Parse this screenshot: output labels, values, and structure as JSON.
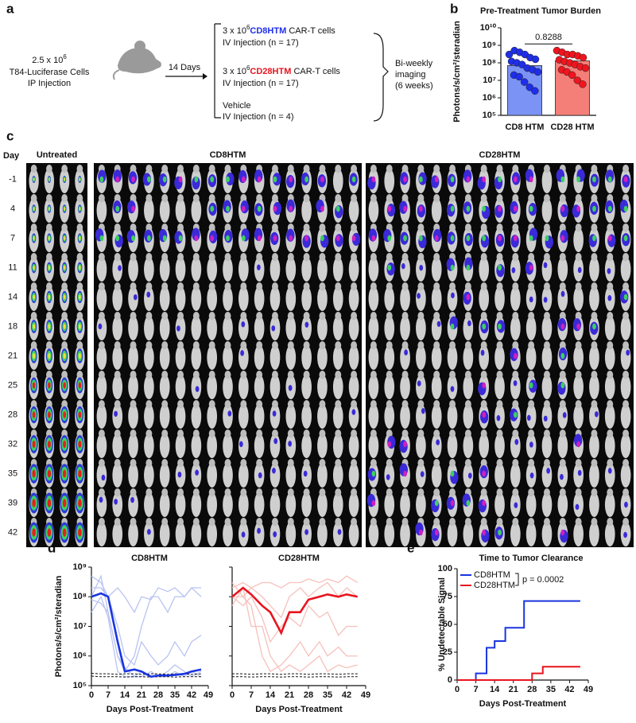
{
  "panel_labels": [
    "a",
    "b",
    "c",
    "d",
    "e"
  ],
  "schematic": {
    "cells_dose": "2.5 x 10",
    "cells_exp": "6",
    "cells_line": "T84-Luciferase Cells",
    "cells_route": "IP Injection",
    "delay": "14 Days",
    "arms": [
      {
        "dose": "3 x 10",
        "exp": "6",
        "name": "CD8HTM",
        "suffix": "CAR-T cells",
        "route": "IV Injection (n = 17)",
        "color": "#1f2ee8"
      },
      {
        "dose": "3 x 10",
        "exp": "6",
        "name": "CD28HTM",
        "suffix": "CAR-T cells",
        "route": "IV Injection (n = 17)",
        "color": "#e8141e"
      },
      {
        "name": "Vehicle",
        "route": "IV Injection (n = 4)"
      }
    ],
    "readout": [
      "Bi-weekly",
      "imaging",
      "(6 weeks)"
    ]
  },
  "imaging": {
    "groups": [
      {
        "name": "Untreated",
        "color": "#111"
      },
      {
        "name": "CD8HTM",
        "color": "#1f2ee8"
      },
      {
        "name": "CD28HTM",
        "color": "#e8141e"
      }
    ],
    "day_header": "Day",
    "days": [
      "-1",
      "4",
      "7",
      "11",
      "14",
      "18",
      "21",
      "25",
      "28",
      "32",
      "35",
      "39",
      "42"
    ]
  },
  "chart_data": [
    {
      "type": "bar",
      "title": "Pre-Treatment Tumor Burden",
      "y_label": "Photons/s/cm²/steradian",
      "categories": [
        "CD8 HTM",
        "CD28 HTM"
      ],
      "values": [
        70000000,
        130000000
      ],
      "colors": [
        "#7b93f5",
        "#f47f79"
      ],
      "point_colors": [
        "#1f2ee8",
        "#f0141e"
      ],
      "points": [
        [
          300000000,
          500000000,
          400000000,
          300000000,
          200000000,
          160000000,
          120000000,
          100000000,
          80000000,
          50000000,
          40000000,
          30000000,
          20000000,
          16000000,
          8000000,
          4000000,
          2500000
        ],
        [
          500000000,
          400000000,
          300000000,
          300000000,
          250000000,
          200000000,
          150000000,
          120000000,
          100000000,
          80000000,
          60000000,
          50000000,
          40000000,
          30000000,
          20000000,
          10000000,
          6000000
        ]
      ],
      "annotation": "0.8288",
      "log_y": true,
      "ylim": [
        100000,
        10000000000
      ],
      "yticks": [
        {
          "value": 100000,
          "label": "10⁵"
        },
        {
          "value": 1000000,
          "label": "10⁶"
        },
        {
          "value": 10000000,
          "label": "10⁷"
        },
        {
          "value": 100000000,
          "label": "10⁸"
        },
        {
          "value": 1000000000,
          "label": "10⁹"
        },
        {
          "value": 10000000000,
          "label": "10¹⁰"
        }
      ]
    },
    {
      "type": "line",
      "title": "CD8HTM",
      "x_label": "Days Post-Treatment",
      "y_label": "Photons/s/cm²/steradian",
      "log_y": true,
      "x": [
        0,
        4,
        7,
        11,
        14,
        18,
        21,
        25,
        28,
        32,
        35,
        39,
        42,
        46
      ],
      "xlim": [
        0,
        49
      ],
      "xticks": [
        0,
        7,
        14,
        21,
        28,
        35,
        42,
        49
      ],
      "ylim": [
        100000,
        1000000000
      ],
      "yticks": [
        {
          "value": 100000,
          "label": "10⁵"
        },
        {
          "value": 1000000,
          "label": "10⁶"
        },
        {
          "value": 10000000,
          "label": "10⁷"
        },
        {
          "value": 100000000,
          "label": "10⁸"
        },
        {
          "value": 1000000000,
          "label": "10⁹"
        }
      ],
      "series": [
        {
          "color": "#b9c3f2",
          "width": 1.3,
          "values": [
            200000000,
            200000000,
            100000000,
            200000000,
            100000000,
            30000000,
            100000000,
            80000000,
            200000000,
            150000000,
            200000000,
            100000000,
            200000000,
            200000000
          ]
        },
        {
          "color": "#b9c3f2",
          "width": 1.3,
          "values": [
            100000000,
            500000000,
            30000000,
            1000000,
            300000,
            1000000,
            10000000,
            100000000,
            100000000,
            30000000,
            100000000,
            100000000,
            200000000,
            100000000
          ]
        },
        {
          "color": "#b9c3f2",
          "width": 1.3,
          "values": [
            30000000,
            100000000,
            20000000,
            300000,
            200000,
            200000,
            300000,
            200000,
            200000,
            300000,
            500000,
            300000,
            200000,
            300000
          ]
        },
        {
          "color": "#b9c3f2",
          "width": 1.3,
          "values": [
            500000000,
            300000000,
            100000000,
            10000000,
            1000000,
            500000,
            3000000,
            1000000,
            500000,
            1000000,
            3000000,
            1000000,
            3000000,
            5000000
          ]
        },
        {
          "color": "#b9c3f2",
          "width": 1.3,
          "values": [
            80000000,
            60000000,
            30000000,
            1000000,
            400000,
            200000,
            200000,
            300000,
            200000,
            200000,
            300000,
            200000,
            300000,
            200000
          ]
        },
        {
          "color": "#111",
          "width": 1,
          "dash": true,
          "values": [
            260000,
            250000,
            250000,
            240000,
            250000,
            250000,
            240000,
            250000,
            250000,
            240000,
            250000,
            250000,
            240000,
            250000
          ]
        },
        {
          "color": "#111",
          "width": 1,
          "dash": true,
          "values": [
            210000,
            200000,
            200000,
            200000,
            195000,
            200000,
            200000,
            195000,
            200000,
            200000,
            195000,
            200000,
            200000,
            200000
          ]
        },
        {
          "color": "#1a35e0",
          "width": 2.6,
          "values": [
            100000000,
            130000000,
            100000000,
            3000000,
            300000,
            350000,
            300000,
            200000,
            220000,
            220000,
            230000,
            250000,
            300000,
            350000
          ]
        }
      ]
    },
    {
      "type": "line",
      "title": "CD28HTM",
      "x_label": "Days Post-Treatment",
      "log_y": true,
      "x": [
        0,
        4,
        7,
        11,
        14,
        18,
        21,
        25,
        28,
        32,
        35,
        39,
        42,
        46
      ],
      "xlim": [
        0,
        49
      ],
      "xticks": [
        0,
        7,
        14,
        21,
        28,
        35,
        42,
        49
      ],
      "ylim": [
        100000,
        1000000000
      ],
      "series": [
        {
          "color": "#f6c0bb",
          "width": 1.3,
          "values": [
            200000000,
            300000000,
            200000000,
            300000000,
            300000000,
            200000000,
            300000000,
            300000000,
            400000000,
            300000000,
            400000000,
            300000000,
            500000000,
            300000000
          ]
        },
        {
          "color": "#f6c0bb",
          "width": 1.3,
          "values": [
            100000000,
            100000000,
            50000000,
            1000000,
            300000,
            500000,
            1000000,
            3000000,
            1000000,
            3000000,
            1000000,
            2000000,
            1000000,
            1000000
          ]
        },
        {
          "color": "#f6c0bb",
          "width": 1.3,
          "values": [
            50000000,
            200000000,
            10000000,
            10000000,
            1000000,
            300000,
            500000,
            300000,
            500000,
            1000000,
            300000,
            500000,
            400000,
            500000
          ]
        },
        {
          "color": "#f6c0bb",
          "width": 1.3,
          "values": [
            300000000,
            100000000,
            200000000,
            100000000,
            50000000,
            20000000,
            100000000,
            200000000,
            100000000,
            200000000,
            300000000,
            100000000,
            200000000,
            100000000
          ]
        },
        {
          "color": "#f6c0bb",
          "width": 1.3,
          "values": [
            100000000,
            50000000,
            100000000,
            20000000,
            3000000,
            10000000,
            20000000,
            10000000,
            50000000,
            20000000,
            30000000,
            5000000,
            10000000,
            10000000
          ]
        },
        {
          "color": "#111",
          "width": 1,
          "dash": true,
          "values": [
            250000,
            250000,
            240000,
            250000,
            250000,
            240000,
            250000,
            250000,
            240000,
            250000,
            250000,
            240000,
            250000,
            250000
          ]
        },
        {
          "color": "#111",
          "width": 1,
          "dash": true,
          "values": [
            200000,
            200000,
            195000,
            200000,
            200000,
            195000,
            200000,
            200000,
            195000,
            200000,
            200000,
            195000,
            200000,
            200000
          ]
        },
        {
          "color": "#e8141e",
          "width": 2.6,
          "values": [
            100000000,
            200000000,
            120000000,
            50000000,
            30000000,
            6000000,
            30000000,
            30000000,
            80000000,
            100000000,
            120000000,
            100000000,
            120000000,
            100000000
          ]
        }
      ]
    },
    {
      "type": "line",
      "title": "Time to Tumor Clearance",
      "x_label": "Days Post-Treatment",
      "y_label": "% Undetectable Signal",
      "annotation": "p = 0.0002",
      "legend": "top-left",
      "xlim": [
        0,
        49
      ],
      "xticks": [
        0,
        7,
        14,
        21,
        28,
        35,
        42,
        49
      ],
      "ylim": [
        0,
        100
      ],
      "yticks": [
        0,
        25,
        50,
        75,
        100
      ],
      "series": [
        {
          "name": "CD8HTM",
          "color": "#1a35e0",
          "width": 2,
          "x": [
            0,
            7,
            7,
            11,
            11,
            14,
            14,
            18,
            18,
            25,
            25,
            46
          ],
          "values": [
            0,
            0,
            6,
            6,
            29,
            29,
            35,
            35,
            47,
            47,
            71,
            71
          ]
        },
        {
          "name": "CD28HTM",
          "color": "#e8141e",
          "width": 2,
          "x": [
            0,
            28,
            28,
            32,
            32,
            46
          ],
          "values": [
            0,
            0,
            6,
            6,
            12,
            12
          ]
        }
      ]
    }
  ]
}
